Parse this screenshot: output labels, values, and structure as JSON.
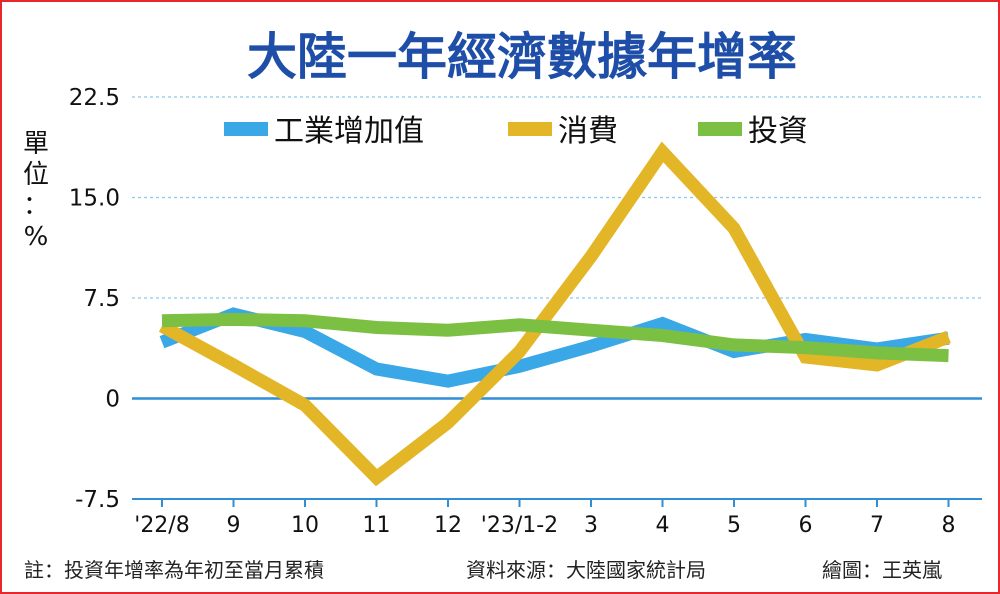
{
  "chart_data": {
    "type": "line",
    "title": "大陸一年經濟數據年增率",
    "ylabel": "單位：%",
    "categories": [
      "'22/8",
      "9",
      "10",
      "11",
      "12",
      "'23/1-2",
      "3",
      "4",
      "5",
      "6",
      "7",
      "8"
    ],
    "yticks": [
      "22.5",
      "15.0",
      "7.5",
      "0",
      "-7.5"
    ],
    "ylim": [
      -7.5,
      22.5
    ],
    "grid": true,
    "legend": "top",
    "series": [
      {
        "name": "工業增加值",
        "color": "#3aa8e6",
        "values": [
          4.2,
          6.3,
          5.0,
          2.2,
          1.3,
          2.4,
          3.9,
          5.6,
          3.5,
          4.4,
          3.7,
          4.5
        ]
      },
      {
        "name": "消費",
        "color": "#e3b628",
        "values": [
          5.4,
          2.5,
          -0.5,
          -5.9,
          -1.8,
          3.5,
          10.6,
          18.4,
          12.7,
          3.1,
          2.5,
          4.6
        ]
      },
      {
        "name": "投資",
        "color": "#7cc043",
        "values": [
          5.8,
          5.9,
          5.8,
          5.3,
          5.1,
          5.5,
          5.1,
          4.7,
          4.0,
          3.8,
          3.4,
          3.2
        ]
      }
    ]
  },
  "footer": {
    "note": "註：投資年增率為年初至當月累積",
    "source": "資料來源：大陸國家統計局",
    "credit": "繪圖：王英嵐"
  },
  "colors": {
    "border": "#e8262b",
    "title": "#1e4ea8",
    "grid": "#8fc7ea",
    "zero_line": "#2e8fd6"
  }
}
